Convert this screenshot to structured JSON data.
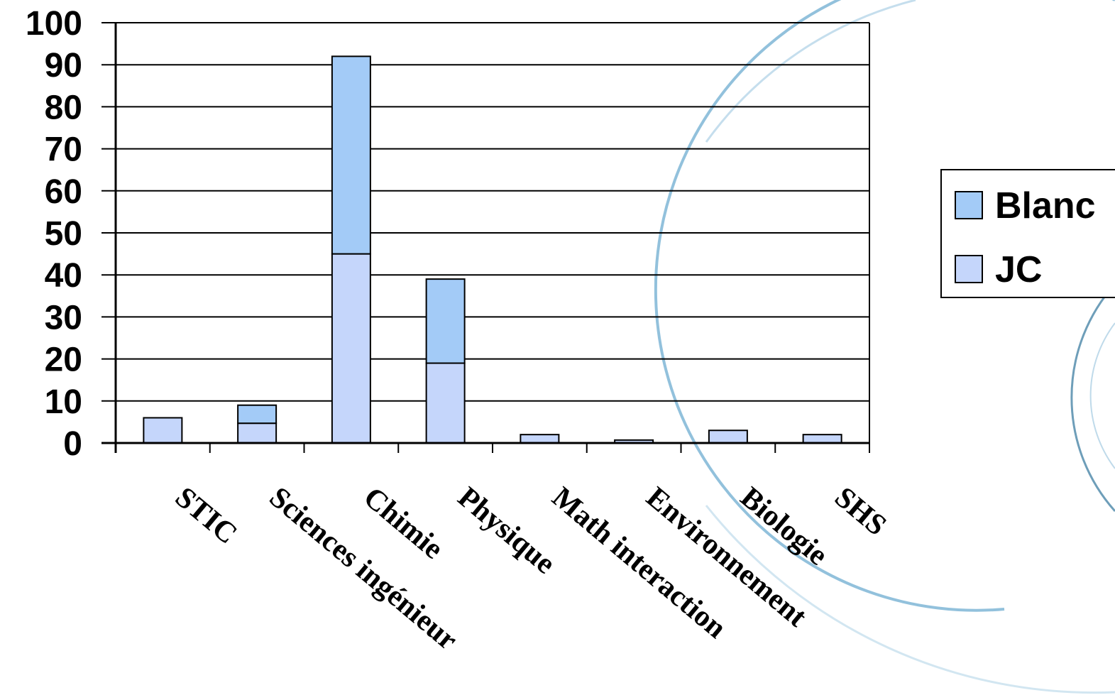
{
  "chart_data": {
    "type": "bar",
    "stacked": true,
    "categories": [
      "STIC",
      "Sciences ingénieur",
      "Chimie",
      "Physique",
      "Math interaction",
      "Environnement",
      "Biologie",
      "SHS"
    ],
    "series": [
      {
        "name": "JC",
        "color": "#c5d6fb",
        "values": [
          6,
          4.7,
          45,
          19,
          2,
          0.7,
          3,
          2
        ]
      },
      {
        "name": "Blanc",
        "color": "#a3cbf7",
        "values": [
          0,
          4.3,
          47,
          20,
          0,
          0,
          0,
          0
        ]
      }
    ],
    "ylim": [
      0,
      100
    ],
    "yticks": [
      0,
      10,
      20,
      30,
      40,
      50,
      60,
      70,
      80,
      90,
      100
    ],
    "grid": true,
    "legend": {
      "placement": "right",
      "order": [
        "Blanc",
        "JC"
      ]
    },
    "title": "",
    "xlabel": "",
    "ylabel": ""
  },
  "decoration": {
    "arc_color": "#7fb6d6"
  }
}
